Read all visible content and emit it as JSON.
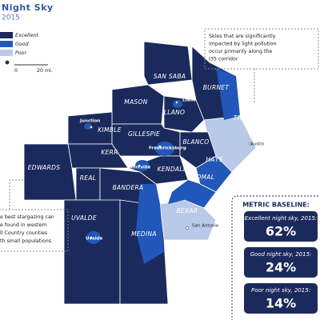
{
  "header": {
    "title": "Night Sky",
    "subtitle": "2015"
  },
  "legend": [
    "Excellent",
    "Good",
    "Poor"
  ],
  "scale": [
    "0",
    "20 mi."
  ],
  "counties": [
    "SAN SABA",
    "BURNET",
    "MASON",
    "LLANO",
    "TRAVIS",
    "KIMBLE",
    "GILLESPIE",
    "BLANCO",
    "KERR",
    "HAYS",
    "EDWARDS",
    "REAL",
    "KENDALL",
    "COMAL",
    "BANDERA",
    "BEXAR",
    "UVALDE",
    "MEDINA"
  ],
  "cities": [
    "Llano",
    "Junction",
    "Fredericksburg",
    "Kerrville",
    "Austin",
    "San Antonio",
    "Uvalde"
  ],
  "annotations": {
    "right": [
      "Skies that are significantly",
      "impacted by light pollution",
      "occur primarily along the",
      "I35 corridor"
    ],
    "left": [
      "e best stargazing can",
      "e found in western",
      "ll Country counties",
      "th small populations"
    ]
  },
  "metrics": {
    "heading": "METRIC BASELINE:",
    "items": [
      {
        "label": "Excellent night sky, 2015:",
        "value": "62%"
      },
      {
        "label": "Good night sky, 2015:",
        "value": "24%"
      },
      {
        "label": "Poor night sky, 2015:",
        "value": "14%"
      }
    ]
  }
}
